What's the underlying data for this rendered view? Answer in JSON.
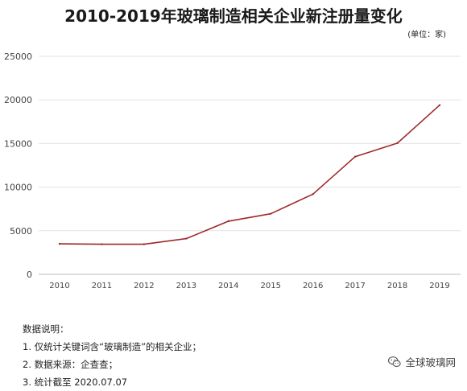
{
  "chart_data": {
    "type": "line",
    "title": "2010-2019年玻璃制造相关企业新注册量变化",
    "unit_label": "(单位：家)",
    "categories": [
      "2010",
      "2011",
      "2012",
      "2013",
      "2014",
      "2015",
      "2016",
      "2017",
      "2018",
      "2019"
    ],
    "series": [
      {
        "values": [
          3500,
          3450,
          3450,
          4100,
          6100,
          6950,
          9200,
          13500,
          15050,
          19400
        ],
        "color": "#9e2a2b"
      }
    ],
    "y_ticks": [
      "0",
      "5000",
      "10000",
      "15000",
      "20000",
      "25000"
    ],
    "ylim": [
      0,
      25000
    ],
    "grid": true,
    "legend": "none"
  },
  "notes": {
    "heading": "数据说明：",
    "items": [
      "1. 仅统计关键词含“玻璃制造”的相关企业；",
      "2. 数据来源：企查查；",
      "3. 统计截至 2020.07.07"
    ]
  },
  "watermark": {
    "text": "全球玻璃网",
    "icon": "wechat-icon"
  }
}
